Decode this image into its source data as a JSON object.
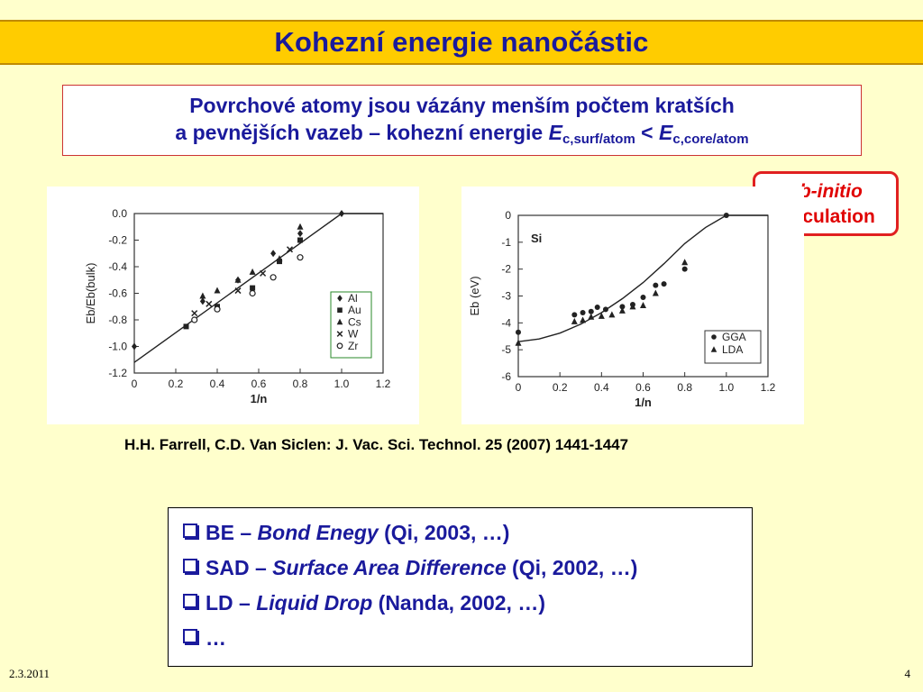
{
  "title": "Kohezní energie nanočástic",
  "intro": {
    "line1": "Povrchové atomy jsou vázány menším počtem kratších",
    "line2_prefix": "a pevnějších vazeb – kohezní energie ",
    "sym1": "E",
    "sub1": "c,surf/atom",
    "lt": " < ",
    "sym2": "E",
    "sub2": "c,core/atom"
  },
  "callout": {
    "line1": "ab-initio",
    "line2": "calculation"
  },
  "citation": "H.H. Farrell, C.D. Van Siclen: J. Vac. Sci. Technol. 25 (2007) 1441-1447",
  "methods": [
    {
      "abbr": "BE – ",
      "full": "Bond Enegy",
      "ref": " (Qi, 2003, …)"
    },
    {
      "abbr": "SAD – ",
      "full": "Surface Area Difference",
      "ref": " (Qi, 2002, …)"
    },
    {
      "abbr": "LD – ",
      "full": "Liquid Drop",
      "ref": " (Nanda, 2002, …)"
    },
    {
      "abbr": "…",
      "full": "",
      "ref": ""
    }
  ],
  "footer": {
    "date": "2.3.2011",
    "page": "4"
  },
  "chart_data": [
    {
      "type": "scatter",
      "xlabel": "1/n",
      "ylabel": "Eb/Eb(bulk)",
      "xlim": [
        0,
        1.2
      ],
      "ylim": [
        -1.2,
        0.0
      ],
      "xticks": [
        "0",
        "0.2",
        "0.4",
        "0.6",
        "0.8",
        "1.0",
        "1.2"
      ],
      "yticks": [
        "0.0",
        "-0.2",
        "-0.4",
        "-0.6",
        "-0.8",
        "-1.0",
        "-1.2"
      ],
      "legend_position": "bottom-right",
      "fit_line": [
        [
          0,
          -1.12
        ],
        [
          1.0,
          0.0
        ],
        [
          1.2,
          0.0
        ]
      ],
      "series": [
        {
          "name": "Al",
          "marker": "diamond",
          "points": [
            [
              0.0,
              -1.0
            ],
            [
              0.33,
              -0.66
            ],
            [
              0.5,
              -0.5
            ],
            [
              0.67,
              -0.3
            ],
            [
              0.8,
              -0.15
            ],
            [
              1.0,
              0.0
            ]
          ]
        },
        {
          "name": "Au",
          "marker": "square",
          "points": [
            [
              0.25,
              -0.85
            ],
            [
              0.4,
              -0.7
            ],
            [
              0.57,
              -0.56
            ],
            [
              0.7,
              -0.36
            ],
            [
              0.8,
              -0.2
            ]
          ]
        },
        {
          "name": "Cs",
          "marker": "triangle",
          "points": [
            [
              0.33,
              -0.62
            ],
            [
              0.4,
              -0.58
            ],
            [
              0.5,
              -0.5
            ],
            [
              0.57,
              -0.44
            ],
            [
              0.7,
              -0.34
            ],
            [
              0.8,
              -0.1
            ]
          ]
        },
        {
          "name": "W",
          "marker": "x",
          "points": [
            [
              0.29,
              -0.75
            ],
            [
              0.36,
              -0.68
            ],
            [
              0.5,
              -0.58
            ],
            [
              0.62,
              -0.45
            ],
            [
              0.75,
              -0.27
            ]
          ]
        },
        {
          "name": "Zr",
          "marker": "circle",
          "points": [
            [
              0.29,
              -0.8
            ],
            [
              0.4,
              -0.72
            ],
            [
              0.57,
              -0.6
            ],
            [
              0.67,
              -0.48
            ],
            [
              0.8,
              -0.33
            ]
          ]
        }
      ]
    },
    {
      "type": "scatter",
      "annotation": "Si",
      "xlabel": "1/n",
      "ylabel": "Eb (eV)",
      "xlim": [
        0,
        1.2
      ],
      "ylim": [
        -6,
        0
      ],
      "xticks": [
        "0",
        "0.2",
        "0.4",
        "0.6",
        "0.8",
        "1.0",
        "1.2"
      ],
      "yticks": [
        "0",
        "-1",
        "-2",
        "-3",
        "-4",
        "-5",
        "-6"
      ],
      "legend_position": "bottom-right",
      "fit_curve": [
        [
          0,
          -4.7
        ],
        [
          0.1,
          -4.6
        ],
        [
          0.2,
          -4.38
        ],
        [
          0.3,
          -4.05
        ],
        [
          0.4,
          -3.62
        ],
        [
          0.5,
          -3.1
        ],
        [
          0.6,
          -2.5
        ],
        [
          0.7,
          -1.8
        ],
        [
          0.8,
          -1.05
        ],
        [
          0.9,
          -0.45
        ],
        [
          1.0,
          0.0
        ],
        [
          1.2,
          0.0
        ]
      ],
      "series": [
        {
          "name": "GGA",
          "marker": "circle",
          "points": [
            [
              0.0,
              -4.35
            ],
            [
              0.27,
              -3.7
            ],
            [
              0.31,
              -3.62
            ],
            [
              0.35,
              -3.58
            ],
            [
              0.38,
              -3.42
            ],
            [
              0.42,
              -3.5
            ],
            [
              0.5,
              -3.4
            ],
            [
              0.55,
              -3.32
            ],
            [
              0.6,
              -3.05
            ],
            [
              0.66,
              -2.6
            ],
            [
              0.7,
              -2.55
            ],
            [
              0.8,
              -2.0
            ],
            [
              1.0,
              0.0
            ]
          ]
        },
        {
          "name": "LDA",
          "marker": "triangle",
          "points": [
            [
              0.0,
              -4.75
            ],
            [
              0.27,
              -3.95
            ],
            [
              0.31,
              -3.9
            ],
            [
              0.35,
              -3.78
            ],
            [
              0.4,
              -3.75
            ],
            [
              0.45,
              -3.7
            ],
            [
              0.5,
              -3.55
            ],
            [
              0.55,
              -3.4
            ],
            [
              0.6,
              -3.35
            ],
            [
              0.66,
              -2.9
            ],
            [
              0.8,
              -1.75
            ]
          ]
        }
      ]
    }
  ]
}
